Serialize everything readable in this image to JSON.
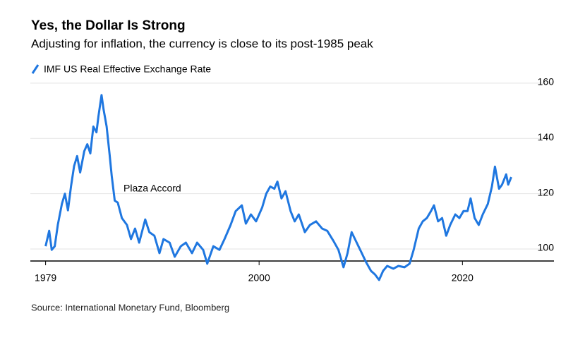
{
  "chart_data": {
    "type": "line",
    "title": "Yes, the Dollar Is Strong",
    "subtitle": "Adjusting for inflation, the currency is close to its post-1985 peak",
    "source": "Source: International Monetary Fund, Bloomberg",
    "annotation": "Plaza Accord",
    "xlim": [
      1977.5,
      2029
    ],
    "xticks": [
      1979,
      2000,
      2020
    ],
    "ylim": [
      87,
      162
    ],
    "yticks": [
      100,
      120,
      140,
      160
    ],
    "grid": true,
    "series": [
      {
        "name": "IMF US Real Effective Exchange Rate",
        "color": "#1f77e0",
        "x": [
          1979.0,
          1979.35,
          1979.6,
          1979.9,
          1980.2,
          1980.6,
          1980.9,
          1981.2,
          1981.5,
          1981.8,
          1982.1,
          1982.4,
          1982.8,
          1983.1,
          1983.4,
          1983.7,
          1984.0,
          1984.2,
          1984.5,
          1984.7,
          1985.0,
          1985.3,
          1985.5,
          1985.8,
          1986.1,
          1986.5,
          1987.0,
          1987.4,
          1987.8,
          1988.2,
          1988.8,
          1989.2,
          1989.7,
          1990.2,
          1990.6,
          1991.2,
          1991.7,
          1992.3,
          1992.8,
          1993.4,
          1993.9,
          1994.5,
          1994.9,
          1995.5,
          1996.1,
          1996.6,
          1997.2,
          1997.7,
          1998.3,
          1998.7,
          1999.2,
          1999.7,
          2000.3,
          2000.7,
          2001.1,
          2001.5,
          2001.8,
          2002.2,
          2002.6,
          2003.1,
          2003.5,
          2003.9,
          2004.5,
          2005.0,
          2005.6,
          2006.2,
          2006.7,
          2007.3,
          2007.8,
          2008.3,
          2008.7,
          2009.1,
          2009.6,
          2010.1,
          2010.5,
          2011.0,
          2011.4,
          2011.8,
          2012.2,
          2012.6,
          2013.2,
          2013.7,
          2014.3,
          2014.8,
          2015.2,
          2015.7,
          2016.1,
          2016.5,
          2016.9,
          2017.2,
          2017.6,
          2018.0,
          2018.4,
          2018.8,
          2019.3,
          2019.7,
          2020.1,
          2020.5,
          2020.8,
          2021.2,
          2021.6,
          2022.0,
          2022.5,
          2022.9,
          2023.2,
          2023.6,
          2023.9,
          2024.3,
          2024.5,
          2024.8
        ],
        "values": [
          101,
          106.6,
          99.7,
          101,
          108.7,
          116.3,
          120,
          114,
          122.6,
          130,
          133.6,
          127.7,
          135.4,
          137.9,
          134.6,
          144.3,
          142.2,
          148,
          155.7,
          150.6,
          144.3,
          134,
          126.5,
          117.5,
          116.8,
          111.2,
          108.7,
          103.6,
          107.4,
          102.3,
          110.7,
          106.1,
          104.8,
          98.5,
          103.6,
          102.3,
          97.2,
          101,
          102.3,
          98.5,
          102.3,
          99.7,
          94.7,
          101,
          99.7,
          103.6,
          108.7,
          113.7,
          115.8,
          109.2,
          112.5,
          110,
          115,
          120,
          122.6,
          121.8,
          124.4,
          118.3,
          120.9,
          113.7,
          110,
          112.5,
          106.1,
          108.7,
          110,
          107.4,
          106.6,
          103,
          99.7,
          93.4,
          98.5,
          106.1,
          102.3,
          98.5,
          95.4,
          92.1,
          90.8,
          88.8,
          92.1,
          93.9,
          92.9,
          93.9,
          93.4,
          94.7,
          99.7,
          107.4,
          110,
          111.2,
          113.7,
          115.8,
          110,
          111.2,
          104.8,
          108.7,
          112.5,
          111.2,
          113.7,
          113.7,
          118.3,
          111.2,
          108.7,
          112.5,
          116.3,
          122.6,
          129.8,
          121.8,
          123.3,
          127,
          123.3,
          126
        ]
      }
    ]
  }
}
